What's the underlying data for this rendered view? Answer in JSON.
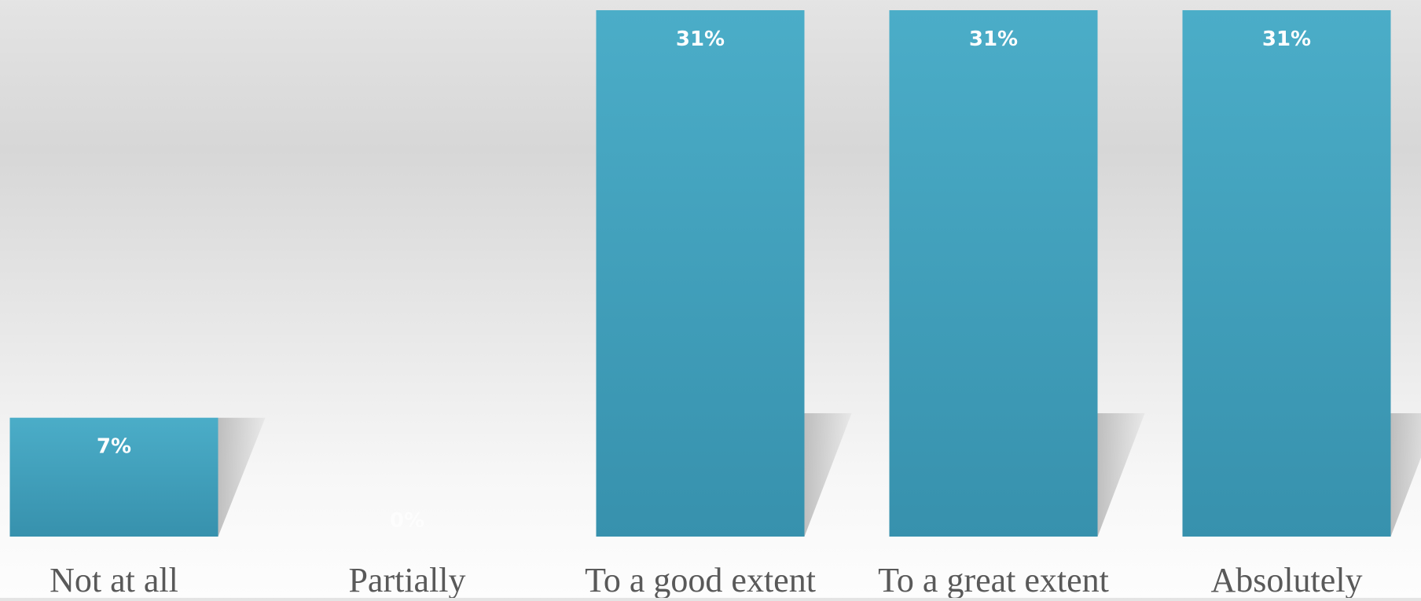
{
  "chart_data": {
    "type": "bar",
    "categories": [
      "Not at all",
      "Partially",
      "To a good extent",
      "To a great extent",
      "Absolutely"
    ],
    "values": [
      7,
      0,
      31,
      31,
      31
    ],
    "value_labels": [
      "7%",
      "0%",
      "31%",
      "31%",
      "31%"
    ],
    "title": "",
    "xlabel": "",
    "ylabel": "",
    "ylim": [
      0,
      31
    ],
    "grid": false,
    "legend": "none",
    "colors": {
      "bar_top": "#4badc8",
      "bar_bottom": "#3791ad",
      "shadow": "#b5b5b5",
      "category_text": "#595959",
      "value_text": "#ffffff"
    }
  }
}
